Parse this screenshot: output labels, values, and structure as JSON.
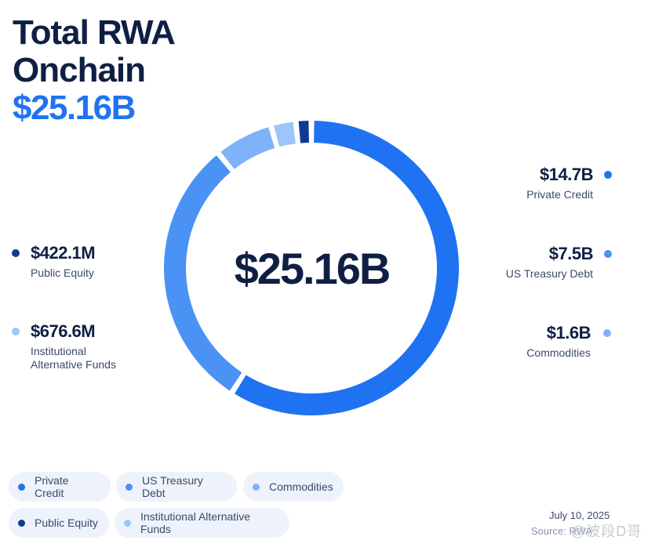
{
  "header": {
    "title_line1": "Total RWA",
    "title_line2": "Onchain",
    "total": "$25.16B"
  },
  "colors": {
    "private_credit": "#1f73f2",
    "us_treasury_debt": "#4a92f4",
    "commodities": "#7fb2f8",
    "public_equity": "#0f3c8f",
    "institutional_alternative_funds": "#9cc5fa"
  },
  "chart_data": {
    "type": "pie",
    "style": "donut",
    "center_label": "$25.16B",
    "slices": [
      {
        "name": "Private Credit",
        "value": 14.7,
        "value_label": "$14.7B",
        "color": "#1f73f2"
      },
      {
        "name": "US Treasury Debt",
        "value": 7.5,
        "value_label": "$7.5B",
        "color": "#4a92f4"
      },
      {
        "name": "Commodities",
        "value": 1.6,
        "value_label": "$1.6B",
        "color": "#7fb2f8"
      },
      {
        "name": "Institutional Alternative Funds",
        "value": 0.6766,
        "value_label": "$676.6M",
        "color": "#9cc5fa"
      },
      {
        "name": "Public Equity",
        "value": 0.4221,
        "value_label": "$422.1M",
        "color": "#0f3c8f"
      }
    ],
    "legend_placement": "bottom-left"
  },
  "labels": {
    "private_credit": {
      "value": "$14.7B",
      "name": "Private Credit"
    },
    "us_treasury_debt": {
      "value": "$7.5B",
      "name": "US Treasury Debt"
    },
    "commodities": {
      "value": "$1.6B",
      "name": "Commodities"
    },
    "public_equity": {
      "value": "$422.1M",
      "name": "Public Equity"
    },
    "institutional_alternative_funds": {
      "value": "$676.6M",
      "name_line1": "Institutional",
      "name_line2": "Alternative Funds"
    }
  },
  "legend": [
    {
      "label": "Private Credit",
      "color": "#1f73f2"
    },
    {
      "label": "US Treasury Debt",
      "color": "#4a92f4"
    },
    {
      "label": "Commodities",
      "color": "#7fb2f8"
    },
    {
      "label": "Public Equity",
      "color": "#0f3c8f"
    },
    {
      "label": "Institutional Alternative Funds",
      "color": "#9cc5fa"
    }
  ],
  "footer": {
    "date": "July 10, 2025",
    "source": "Source: RWA",
    "watermark": "@波段D哥"
  }
}
